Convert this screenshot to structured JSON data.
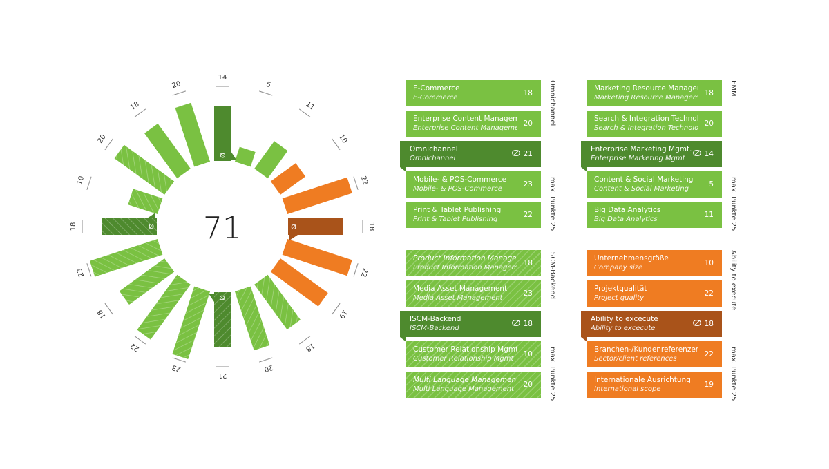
{
  "colors": {
    "green": "#7ac142",
    "dark_green": "#4e8a2e",
    "orange": "#ef7c22",
    "dark_orange": "#a9531a",
    "label": "#333333"
  },
  "chart_data": {
    "type": "radial-bar",
    "total": "71",
    "max": 25,
    "bars": [
      {
        "label": "14",
        "value": 14,
        "kind": "avg"
      },
      {
        "label": "5",
        "value": 5,
        "kind": "green"
      },
      {
        "label": "11",
        "value": 11,
        "kind": "green"
      },
      {
        "label": "10",
        "value": 10,
        "kind": "orange"
      },
      {
        "label": "22",
        "value": 22,
        "kind": "orange"
      },
      {
        "label": "18",
        "value": 18,
        "kind": "avg-orange"
      },
      {
        "label": "22",
        "value": 22,
        "kind": "orange"
      },
      {
        "label": "19",
        "value": 19,
        "kind": "orange"
      },
      {
        "label": "18",
        "value": 18,
        "kind": "green-hatch"
      },
      {
        "label": "20",
        "value": 20,
        "kind": "green-hatch"
      },
      {
        "label": "21",
        "value": 21,
        "kind": "avg-hatch"
      },
      {
        "label": "23",
        "value": 23,
        "kind": "green-hatch"
      },
      {
        "label": "22",
        "value": 22,
        "kind": "green-hatch"
      },
      {
        "label": "18",
        "value": 18,
        "kind": "green-hatch"
      },
      {
        "label": "23",
        "value": 23,
        "kind": "green-hatch"
      },
      {
        "label": "18",
        "value": 18,
        "kind": "avg-hatch"
      },
      {
        "label": "10",
        "value": 10,
        "kind": "green-hatch"
      },
      {
        "label": "20",
        "value": 20,
        "kind": "green-hatch"
      },
      {
        "label": "18",
        "value": 18,
        "kind": "green"
      },
      {
        "label": "20",
        "value": 20,
        "kind": "green"
      }
    ]
  },
  "groups": [
    {
      "side_label": "Omnichannel",
      "side_label2": "max. Punkte 25",
      "items": [
        {
          "title": "E-Commerce",
          "subtitle": "E-Commerce",
          "value": "18",
          "style": "green"
        },
        {
          "title": "Enterprise Content Management",
          "subtitle": "Enterprise Content Management",
          "value": "20",
          "style": "green"
        },
        {
          "title": "Omnichannel",
          "subtitle": "Omnichannel",
          "value": "21",
          "style": "avg-green"
        },
        {
          "title": "Mobile- & POS-Commerce",
          "subtitle": "Mobile- & POS-Commerce",
          "value": "23",
          "style": "green"
        },
        {
          "title": "Print & Tablet Publishing",
          "subtitle": "Print & Tablet Publishing",
          "value": "22",
          "style": "green"
        }
      ]
    },
    {
      "side_label": "EMM",
      "side_label2": "max. Punkte 25",
      "items": [
        {
          "title": "Marketing Resource Management",
          "subtitle": "Marketing Resource Management",
          "value": "18",
          "style": "green"
        },
        {
          "title": "Search & Integration Technologies",
          "subtitle": "Search & Integration Technologies",
          "value": "20",
          "style": "green"
        },
        {
          "title": "Enterprise Marketing Mgmt.",
          "subtitle": "Enterprise Marketing Mgmt",
          "value": "14",
          "style": "avg-green"
        },
        {
          "title": "Content & Social Marketing",
          "subtitle": "Content & Social Marketing",
          "value": "5",
          "style": "green"
        },
        {
          "title": "Big Data Analytics",
          "subtitle": "Big Data Analytics",
          "value": "11",
          "style": "green"
        }
      ]
    },
    {
      "side_label": "ISCM-Backend",
      "side_label2": "max. Punkte 25",
      "items": [
        {
          "title": "Product Information Management",
          "subtitle": "Product Information Management",
          "value": "18",
          "style": "green-hatch",
          "title_italic": true
        },
        {
          "title": "Media Asset Management",
          "subtitle": "Media Asset Management",
          "value": "23",
          "style": "green-hatch"
        },
        {
          "title": "ISCM-Backend",
          "subtitle": "ISCM-Backend",
          "value": "18",
          "style": "avg-green"
        },
        {
          "title": "Customer Relationship Mgmt.",
          "subtitle": "Customer Relationship Mgmt",
          "value": "10",
          "style": "green-hatch"
        },
        {
          "title": "Multi Language Management",
          "subtitle": "Multi Language Management",
          "value": "20",
          "style": "green-hatch",
          "title_italic": true
        }
      ]
    },
    {
      "side_label": "Ability to execute",
      "side_label2": "max. Punkte 25",
      "items": [
        {
          "title": "Unternehmensgröße",
          "subtitle": "Company size",
          "value": "10",
          "style": "orange"
        },
        {
          "title": "Projektqualität",
          "subtitle": "Project quality",
          "value": "22",
          "style": "orange"
        },
        {
          "title": "Ability to excecute",
          "subtitle": "Ability to excecute",
          "value": "18",
          "style": "avg-orange"
        },
        {
          "title": "Branchen-/Kundenreferenzen",
          "subtitle": "Sector/client references",
          "value": "22",
          "style": "orange"
        },
        {
          "title": "Internationale Ausrichtung",
          "subtitle": "International scope",
          "value": "19",
          "style": "orange"
        }
      ]
    }
  ]
}
